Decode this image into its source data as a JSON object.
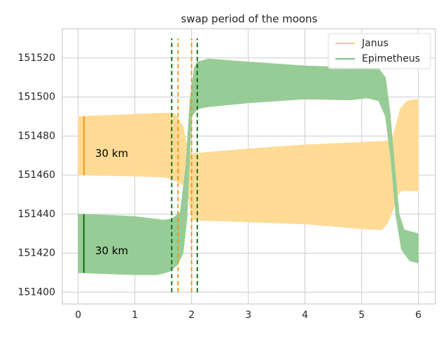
{
  "chart_data": {
    "type": "area",
    "title": "swap period of the moons",
    "xlabel": "",
    "ylabel": "",
    "xlim": [
      -0.28,
      6.3
    ],
    "ylim": [
      151394,
      151535
    ],
    "xticks": [
      0,
      1,
      2,
      3,
      4,
      5,
      6
    ],
    "yticks": [
      151400,
      151420,
      151440,
      151460,
      151480,
      151500,
      151520
    ],
    "grid": true,
    "legend": {
      "placement": "top-right",
      "entries": [
        "Janus",
        "Epimetheus"
      ]
    },
    "colors": {
      "janus_fill": "#ffdb96",
      "janus_line": "#ffc870",
      "epimetheus_fill": "#98cc96",
      "epimetheus_line": "#7fbf7f",
      "orange_marker": "#ff8c00",
      "green_marker": "#006400"
    },
    "series": [
      {
        "name": "Janus",
        "upper": [
          [
            0,
            151490
          ],
          [
            0.5,
            151490.6
          ],
          [
            1,
            151491.2
          ],
          [
            1.5,
            151491.8
          ],
          [
            1.7,
            151491.5
          ],
          [
            1.85,
            151485
          ],
          [
            1.93,
            151473
          ],
          [
            2.0,
            151471
          ],
          [
            2.2,
            151471.5
          ],
          [
            3,
            151473.5
          ],
          [
            4,
            151475.5
          ],
          [
            5,
            151476.8
          ],
          [
            5.45,
            151477.5
          ],
          [
            5.55,
            151480
          ],
          [
            5.62,
            151487
          ],
          [
            5.68,
            151494
          ],
          [
            5.8,
            151498
          ],
          [
            6,
            151499
          ]
        ],
        "lower": [
          [
            0,
            151460
          ],
          [
            0.5,
            151459.8
          ],
          [
            1,
            151459.5
          ],
          [
            1.5,
            151459
          ],
          [
            1.65,
            151458
          ],
          [
            1.85,
            151455
          ],
          [
            1.93,
            151452
          ],
          [
            2.0,
            151437
          ],
          [
            2.5,
            151436.5
          ],
          [
            3,
            151436
          ],
          [
            4,
            151435
          ],
          [
            5,
            151432.5
          ],
          [
            5.35,
            151432
          ],
          [
            5.45,
            151435
          ],
          [
            5.55,
            151442
          ],
          [
            5.62,
            151449
          ],
          [
            5.7,
            151452
          ],
          [
            6,
            151452
          ]
        ]
      },
      {
        "name": "Epimetheus",
        "upper": [
          [
            0,
            151440
          ],
          [
            0.5,
            151439.5
          ],
          [
            1,
            151438.8
          ],
          [
            1.5,
            151437
          ],
          [
            1.65,
            151437.5
          ],
          [
            1.8,
            151441
          ],
          [
            1.9,
            151465
          ],
          [
            1.97,
            151498
          ],
          [
            2.05,
            151515
          ],
          [
            2.1,
            151518
          ],
          [
            2.3,
            151519.5
          ],
          [
            3,
            151518
          ],
          [
            4,
            151516
          ],
          [
            5,
            151515
          ],
          [
            5.3,
            151514.5
          ],
          [
            5.42,
            151510
          ],
          [
            5.5,
            151492
          ],
          [
            5.58,
            151465
          ],
          [
            5.66,
            151440
          ],
          [
            5.75,
            151432
          ],
          [
            6,
            151430
          ]
        ],
        "lower": [
          [
            0,
            151410
          ],
          [
            0.5,
            151409.5
          ],
          [
            1,
            151409
          ],
          [
            1.4,
            151409
          ],
          [
            1.6,
            151410.5
          ],
          [
            1.75,
            151414
          ],
          [
            1.85,
            151420
          ],
          [
            1.92,
            151438
          ],
          [
            1.97,
            151473
          ],
          [
            2.0,
            151490
          ],
          [
            2.1,
            151494
          ],
          [
            2.3,
            151495
          ],
          [
            3,
            151497
          ],
          [
            4,
            151499
          ],
          [
            4.8,
            151498.5
          ],
          [
            5.1,
            151499.5
          ],
          [
            5.3,
            151498
          ],
          [
            5.42,
            151490
          ],
          [
            5.52,
            151467
          ],
          [
            5.6,
            151440
          ],
          [
            5.7,
            151422
          ],
          [
            5.85,
            151416
          ],
          [
            6,
            151415
          ]
        ]
      }
    ],
    "vertical_lines": [
      {
        "x": 1.65,
        "style": "dashed",
        "color": "green",
        "y_range": [
          151400,
          151530
        ]
      },
      {
        "x": 1.76,
        "style": "dashed",
        "color": "orange",
        "y_range": [
          151400,
          151530
        ]
      },
      {
        "x": 2.0,
        "style": "dashed",
        "color": "orange",
        "y_range": [
          151400,
          151530
        ]
      },
      {
        "x": 2.1,
        "style": "dashed",
        "color": "green",
        "y_range": [
          151400,
          151530
        ]
      }
    ],
    "segments": [
      {
        "x": 0.1,
        "y_range": [
          151460,
          151490
        ],
        "color": "orange"
      },
      {
        "x": 0.1,
        "y_range": [
          151410,
          151440
        ],
        "color": "green"
      }
    ],
    "annotations": [
      {
        "text": "30 km",
        "x": 0.3,
        "y": 151471
      },
      {
        "text": "30 km",
        "x": 0.3,
        "y": 151421
      }
    ]
  }
}
